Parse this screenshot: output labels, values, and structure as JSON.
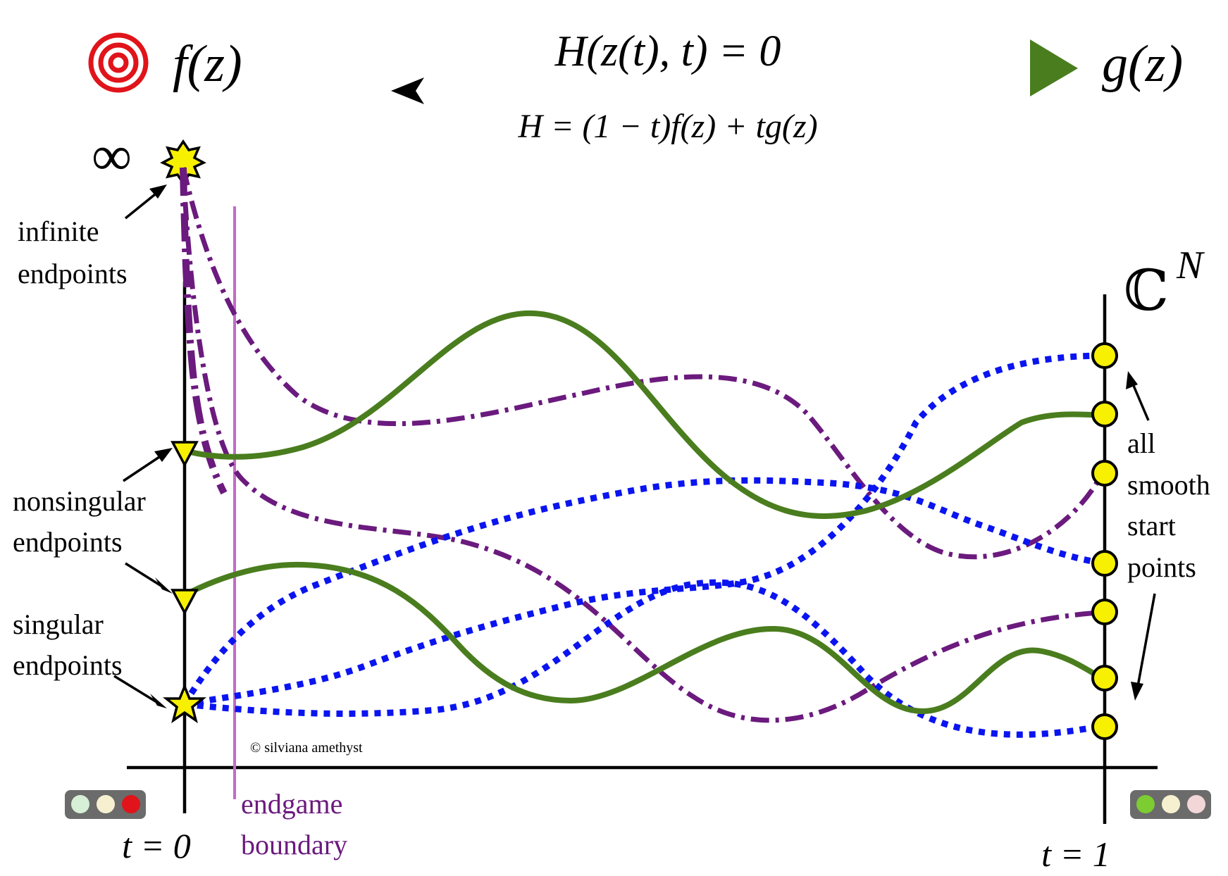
{
  "header": {
    "left_label": "f(z)",
    "right_label": "g(z)",
    "equation_top": "H(z(t), t) = 0",
    "equation_bottom": "H = (1 − t)f(z) + tg(z)",
    "target_icon": "target-icon",
    "play_icon": "play-triangle-icon"
  },
  "labels": {
    "infinity": "∞",
    "infinite_endpoints": [
      "infinite",
      "endpoints"
    ],
    "nonsingular_endpoints": [
      "nonsingular",
      "endpoints"
    ],
    "singular_endpoints": [
      "singular",
      "endpoints"
    ],
    "all_smooth_start_points": [
      "all",
      "smooth",
      "start",
      "points"
    ],
    "complex_space": "ℂ",
    "complex_space_exponent": "N",
    "t0": "t = 0",
    "t1": "t = 1",
    "endgame_boundary": [
      "endgame",
      "boundary"
    ],
    "copyright": "© silviana amethyst"
  },
  "colors": {
    "solid_path": "#4a7d1e",
    "dotted_path": "#0a14f0",
    "dashdot_path": "#6b1a7e",
    "endgame_line": "#c46bc8",
    "endgame_text": "#6b1a7e",
    "marker_fill": "#f7f000",
    "target_red": "#e0141a",
    "play_green": "#4a7d1e",
    "arrow_gradient": [
      "#e0141a",
      "#7a5a16",
      "#5aa82a",
      "#6cc63a"
    ]
  },
  "traffic_lights": {
    "left": [
      "#d6efd6",
      "#f7f0d0",
      "#e0141a"
    ],
    "right": [
      "#7ccc32",
      "#f7f0d0",
      "#f3d6d8"
    ]
  }
}
